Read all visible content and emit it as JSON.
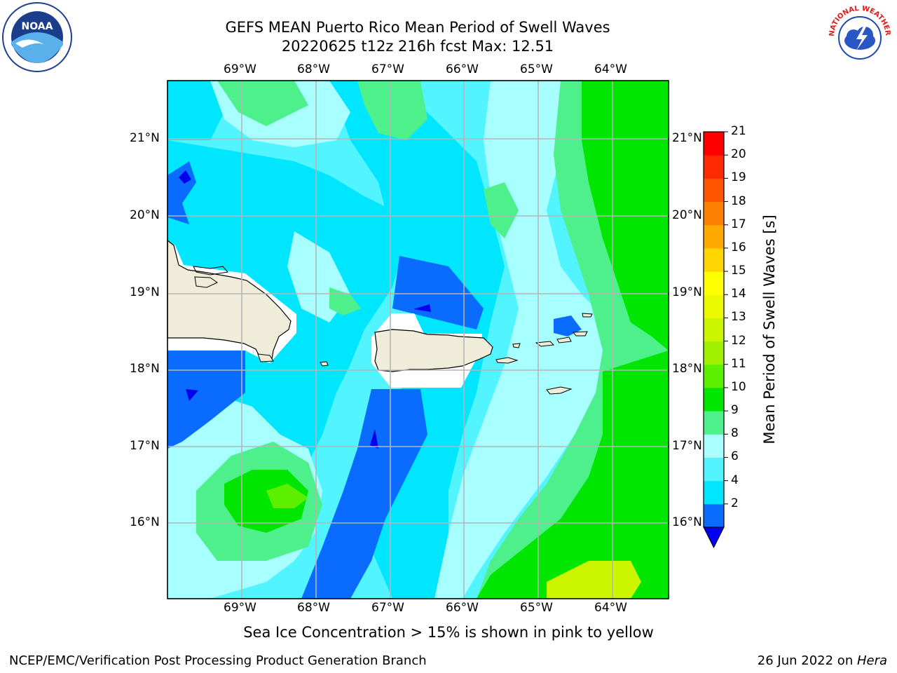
{
  "title_line1": "GEFS MEAN Puerto Rico Mean Period of Swell Waves",
  "title_line2": "20220625 t12z 216h fcst   Max: 12.51",
  "top_lon_labels": [
    "69°W",
    "68°W",
    "67°W",
    "66°W",
    "65°W",
    "64°W"
  ],
  "bottom_lon_labels": [
    "69°W",
    "68°W",
    "67°W",
    "66°W",
    "65°W",
    "64°W"
  ],
  "left_lat_labels": [
    "21°N",
    "20°N",
    "19°N",
    "18°N",
    "17°N",
    "16°N"
  ],
  "right_lat_labels": [
    "21°N",
    "20°N",
    "19°N",
    "18°N",
    "17°N",
    "16°N"
  ],
  "colorbar": {
    "label": "Mean Period of Swell Waves [s]",
    "ticks": [
      "21",
      "20",
      "19",
      "18",
      "17",
      "16",
      "15",
      "14",
      "13",
      "12",
      "11",
      "10",
      "9",
      "8",
      "6",
      "4",
      "2"
    ],
    "colors": [
      "#0000ee",
      "#0a6cff",
      "#00e6ff",
      "#52f4ff",
      "#a8ffff",
      "#4df08a",
      "#00e600",
      "#5cf000",
      "#a0f000",
      "#ccf500",
      "#ecfa00",
      "#ffff00",
      "#ffd500",
      "#ffaa00",
      "#ff8000",
      "#ff5500",
      "#ff2a00",
      "#ff0000"
    ]
  },
  "caption": "Sea Ice Concentration > 15% is shown in pink to yellow",
  "footer_left": "NCEP/EMC/Verification Post Processing Product Generation Branch",
  "footer_date": "26 Jun 2022 on ",
  "footer_machine": "Hera",
  "logo_noaa_text": "NOAA",
  "logo_nws_text": "NATIONAL WEATHER SERVICE"
}
